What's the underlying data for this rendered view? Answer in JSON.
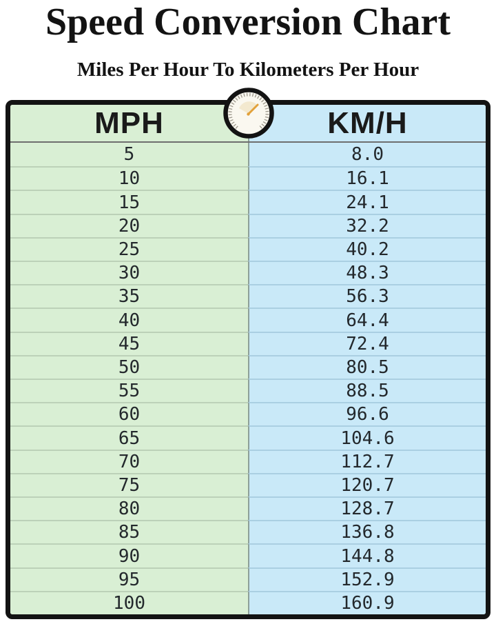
{
  "page": {
    "title": "Speed Conversion Chart",
    "subtitle": "Miles Per Hour To Kilometers Per Hour"
  },
  "table": {
    "headers": {
      "mph": "MPH",
      "kmh": "KM/H"
    },
    "rows": [
      {
        "mph": "5",
        "kmh": "8.0"
      },
      {
        "mph": "10",
        "kmh": "16.1"
      },
      {
        "mph": "15",
        "kmh": "24.1"
      },
      {
        "mph": "20",
        "kmh": "32.2"
      },
      {
        "mph": "25",
        "kmh": "40.2"
      },
      {
        "mph": "30",
        "kmh": "48.3"
      },
      {
        "mph": "35",
        "kmh": "56.3"
      },
      {
        "mph": "40",
        "kmh": "64.4"
      },
      {
        "mph": "45",
        "kmh": "72.4"
      },
      {
        "mph": "50",
        "kmh": "80.5"
      },
      {
        "mph": "55",
        "kmh": "88.5"
      },
      {
        "mph": "60",
        "kmh": "96.6"
      },
      {
        "mph": "65",
        "kmh": "104.6"
      },
      {
        "mph": "70",
        "kmh": "112.7"
      },
      {
        "mph": "75",
        "kmh": "120.7"
      },
      {
        "mph": "80",
        "kmh": "128.7"
      },
      {
        "mph": "85",
        "kmh": "136.8"
      },
      {
        "mph": "90",
        "kmh": "144.8"
      },
      {
        "mph": "95",
        "kmh": "152.9"
      },
      {
        "mph": "100",
        "kmh": "160.9"
      }
    ]
  },
  "icons": {
    "speedometer": "speedometer-gauge"
  },
  "colors": {
    "mph_column_bg": "#d9efd4",
    "kmh_column_bg": "#c9e9f8",
    "mph_row_divider": "#bcd1b8",
    "kmh_row_divider": "#aacfe2",
    "table_border": "#131313",
    "header_underline": "#6e6e6e",
    "needle_orange": "#e2a13a",
    "text": "#131313"
  },
  "chart_data": {
    "type": "table",
    "title": "Speed Conversion Chart",
    "subtitle": "Miles Per Hour To Kilometers Per Hour",
    "columns": [
      "MPH",
      "KM/H"
    ],
    "rows": [
      [
        5,
        8.0
      ],
      [
        10,
        16.1
      ],
      [
        15,
        24.1
      ],
      [
        20,
        32.2
      ],
      [
        25,
        40.2
      ],
      [
        30,
        48.3
      ],
      [
        35,
        56.3
      ],
      [
        40,
        64.4
      ],
      [
        45,
        72.4
      ],
      [
        50,
        80.5
      ],
      [
        55,
        88.5
      ],
      [
        60,
        96.6
      ],
      [
        65,
        104.6
      ],
      [
        70,
        112.7
      ],
      [
        75,
        120.7
      ],
      [
        80,
        128.7
      ],
      [
        85,
        136.8
      ],
      [
        90,
        144.8
      ],
      [
        95,
        152.9
      ],
      [
        100,
        160.9
      ]
    ]
  }
}
